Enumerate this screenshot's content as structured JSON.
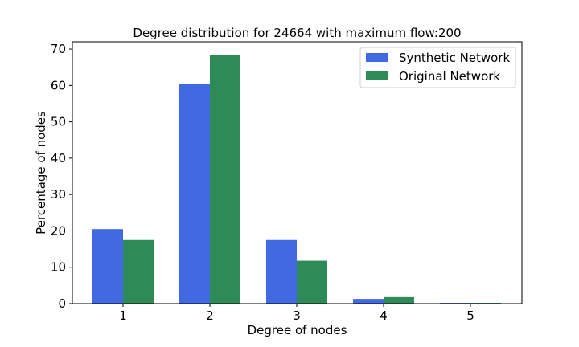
{
  "chart_data": {
    "type": "bar",
    "title": "Degree distribution for 24664 with maximum flow:200",
    "xlabel": "Degree of nodes",
    "ylabel": "Percentage of nodes",
    "categories": [
      "1",
      "2",
      "3",
      "4",
      "5"
    ],
    "ylim": [
      0,
      72
    ],
    "yticks": [
      0,
      10,
      20,
      30,
      40,
      50,
      60,
      70
    ],
    "grid": false,
    "legend_position": "top-right",
    "series": [
      {
        "name": "Synthetic Network",
        "color": "#4169e1",
        "values": [
          20.5,
          60.3,
          17.5,
          1.3,
          0.2
        ]
      },
      {
        "name": "Original Network",
        "color": "#2e8b57",
        "values": [
          17.5,
          68.3,
          11.8,
          1.8,
          0.2
        ]
      }
    ]
  }
}
